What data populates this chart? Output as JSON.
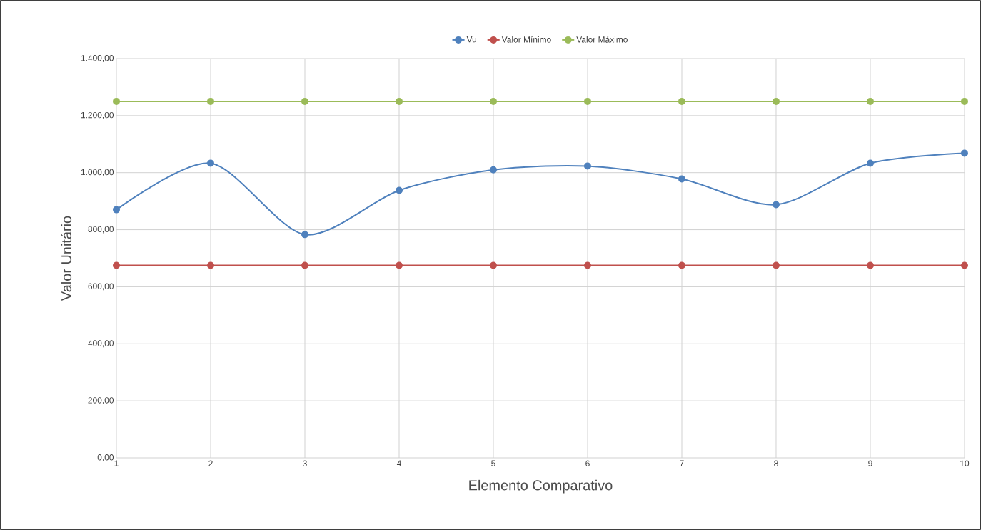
{
  "chart_data": {
    "type": "line",
    "xlabel": "Elemento Comparativo",
    "ylabel": "Valor Unitário",
    "x": [
      1,
      2,
      3,
      4,
      5,
      6,
      7,
      8,
      9,
      10
    ],
    "series": [
      {
        "name": "Vu",
        "color": "#4f81bd",
        "values": [
          870,
          1033,
          783,
          938,
          1010,
          1023,
          978,
          888,
          1033,
          1068
        ]
      },
      {
        "name": "Valor Mínimo",
        "color": "#c0504d",
        "values": [
          675,
          675,
          675,
          675,
          675,
          675,
          675,
          675,
          675,
          675
        ]
      },
      {
        "name": "Valor Máximo",
        "color": "#9bbb59",
        "values": [
          1250,
          1250,
          1250,
          1250,
          1250,
          1250,
          1250,
          1250,
          1250,
          1250
        ]
      }
    ],
    "xlim": [
      1,
      10
    ],
    "xticks": [
      1,
      2,
      3,
      4,
      5,
      6,
      7,
      8,
      9,
      10
    ],
    "ylim": [
      0,
      1400
    ],
    "yticks": [
      {
        "value": 0,
        "label": "0,00"
      },
      {
        "value": 200,
        "label": "200,00"
      },
      {
        "value": 400,
        "label": "400,00"
      },
      {
        "value": 600,
        "label": "600,00"
      },
      {
        "value": 800,
        "label": "800,00"
      },
      {
        "value": 1000,
        "label": "1.000,00"
      },
      {
        "value": 1200,
        "label": "1.200,00"
      },
      {
        "value": 1400,
        "label": "1.400,00"
      }
    ],
    "grid": true,
    "legend": "top",
    "marker": "circle",
    "line_style": "solid"
  }
}
